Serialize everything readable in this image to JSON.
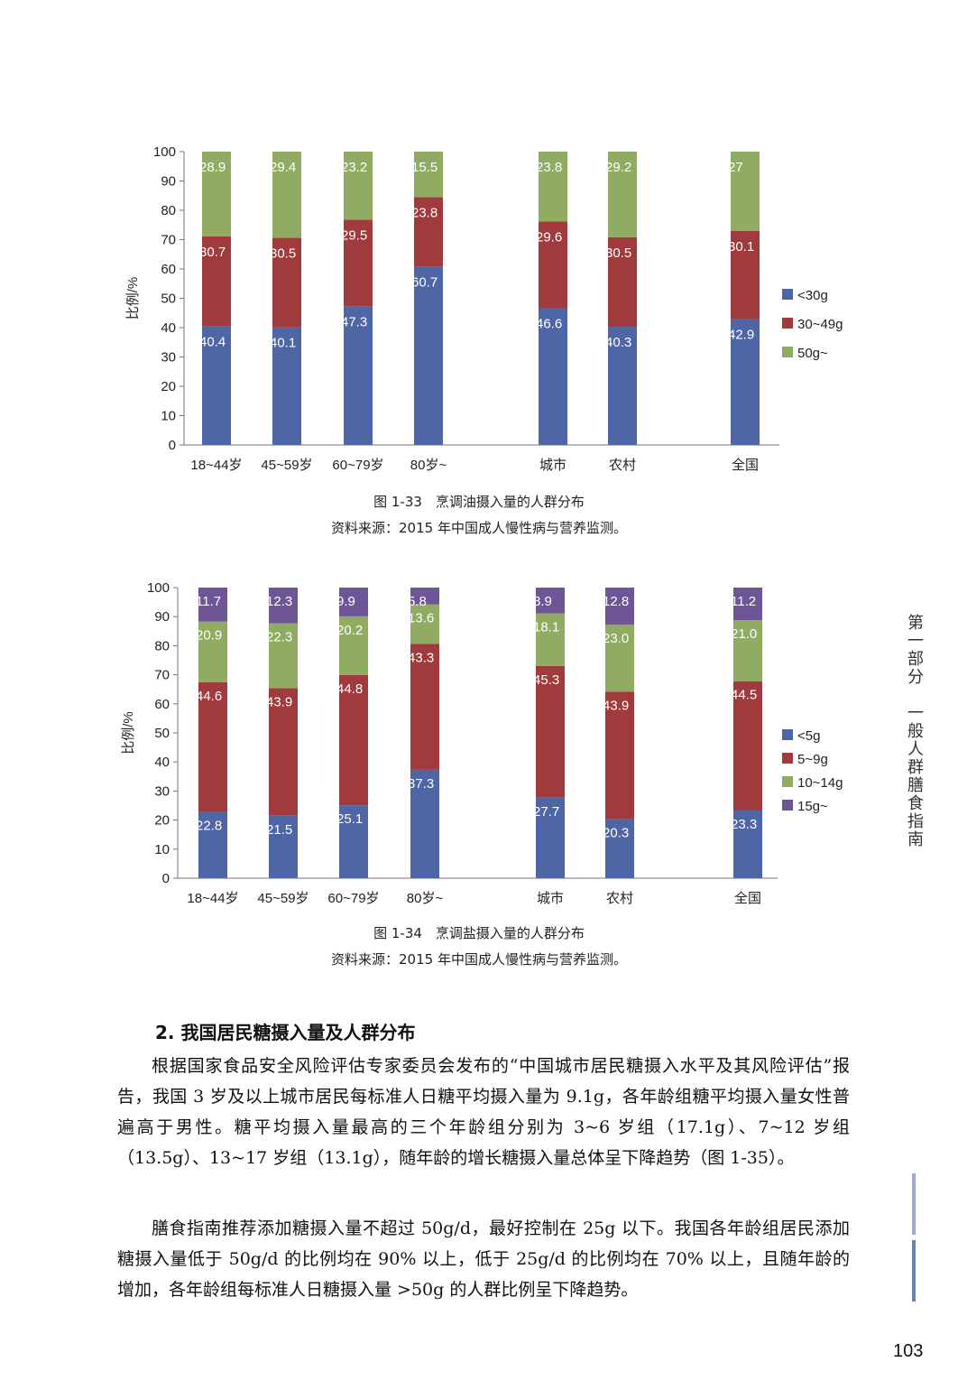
{
  "chart_data": [
    {
      "type": "bar",
      "stacked": true,
      "categories": [
        "18~44岁",
        "45~59岁",
        "60~79岁",
        "80岁~",
        "城市",
        "农村",
        "全国"
      ],
      "series": [
        {
          "name": "<30g",
          "values": [
            40.4,
            40.1,
            47.3,
            60.7,
            46.6,
            40.3,
            42.9
          ]
        },
        {
          "name": "30~49g",
          "values": [
            30.7,
            30.5,
            29.5,
            23.8,
            29.6,
            30.5,
            30.1
          ]
        },
        {
          "name": "50g~",
          "values": [
            28.9,
            29.4,
            23.2,
            15.5,
            23.8,
            29.2,
            27
          ]
        }
      ],
      "ylabel": "比例/%",
      "ylim": [
        0,
        100
      ],
      "yticks": [
        0,
        10,
        20,
        30,
        40,
        50,
        60,
        70,
        80,
        90,
        100
      ],
      "legend": "right",
      "grid": false,
      "title": "图 1-33　烹调油摄入量的人群分布",
      "source": "资料来源：2015 年中国成人慢性病与营养监测。"
    },
    {
      "type": "bar",
      "stacked": true,
      "categories": [
        "18~44岁",
        "45~59岁",
        "60~79岁",
        "80岁~",
        "城市",
        "农村",
        "全国"
      ],
      "series": [
        {
          "name": "<5g",
          "values": [
            22.8,
            21.5,
            25.1,
            37.3,
            27.7,
            20.3,
            23.3
          ]
        },
        {
          "name": "5~9g",
          "values": [
            44.6,
            43.9,
            44.8,
            43.3,
            45.3,
            43.9,
            44.5
          ]
        },
        {
          "name": "10~14g",
          "values": [
            20.9,
            22.3,
            20.2,
            13.6,
            18.1,
            23.0,
            21.0
          ]
        },
        {
          "name": "15g~",
          "values": [
            11.7,
            12.3,
            9.9,
            5.8,
            8.9,
            12.8,
            11.2
          ]
        }
      ],
      "value_labels": [
        [
          "22.8",
          "21.5",
          "25.1",
          "37.3",
          "27.7",
          "20.3",
          "23.3"
        ],
        [
          "44.6",
          "43.9",
          "44.8",
          "43.3",
          "45.3",
          "43.9",
          "44.5"
        ],
        [
          "20.9",
          "22.3",
          "20.2",
          "13.6",
          "18.1",
          "23.0",
          "21.0"
        ],
        [
          "11.7",
          "12.3",
          "9.9",
          "5.8",
          "8.9",
          "12.8",
          "11.2"
        ]
      ],
      "ylabel": "比例/%",
      "ylim": [
        0,
        100
      ],
      "yticks": [
        0,
        10,
        20,
        30,
        40,
        50,
        60,
        70,
        80,
        90,
        100
      ],
      "legend": "right",
      "grid": false,
      "title": "图 1-34　烹调盐摄入量的人群分布",
      "source": "资料来源：2015 年中国成人慢性病与营养监测。"
    }
  ],
  "colors": {
    "blue": "#4f66a6",
    "red": "#a03a3c",
    "green": "#8fac62",
    "purple": "#6e5596",
    "side_bar": "#6b7fb8"
  },
  "section": {
    "title": "2. 我国居民糖摄入量及人群分布",
    "paragraphs": [
      "根据国家食品安全风险评估专家委员会发布的“中国城市居民糖摄入水平及其风险评估”报告，我国 3 岁及以上城市居民每标准人日糖平均摄入量为 9.1g，各年龄组糖平均摄入量女性普遍高于男性。糖平均摄入量最高的三个年龄组分别为 3~6 岁组（17.1g）、7~12 岁组（13.5g）、13~17 岁组（13.1g），随年龄的增长糖摄入量总体呈下降趋势（图 1-35）。",
      "膳食指南推荐添加糖摄入量不超过 50g/d，最好控制在 25g 以下。我国各年龄组居民添加糖摄入量低于 50g/d 的比例均在 90% 以上，低于 25g/d 的比例均在 70% 以上，且随年龄的增加，各年龄组每标准人日糖摄入量 >50g 的人群比例呈下降趋势。"
    ]
  },
  "side_label": "第一部分　一般人群膳食指南",
  "page_number": "103"
}
